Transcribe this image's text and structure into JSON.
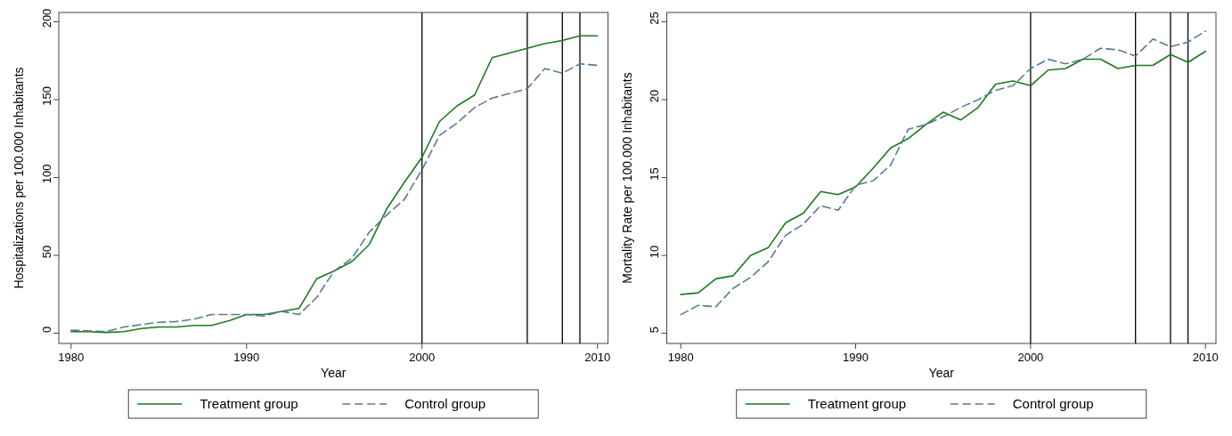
{
  "chart_data": [
    {
      "type": "line",
      "xlabel": "Year",
      "ylabel": "Hospitalizations per 100.000 Inhabitants",
      "x": [
        1980,
        1981,
        1982,
        1983,
        1984,
        1985,
        1986,
        1987,
        1988,
        1989,
        1990,
        1991,
        1992,
        1993,
        1994,
        1995,
        1996,
        1997,
        1998,
        1999,
        2000,
        2001,
        2002,
        2003,
        2004,
        2005,
        2006,
        2007,
        2008,
        2009,
        2010
      ],
      "series": [
        {
          "name": "Treatment group",
          "color": "#1a7a1a",
          "line_style": "solid",
          "values": [
            1,
            1,
            0.5,
            1,
            3,
            4,
            4,
            5,
            5,
            8,
            12,
            12,
            14,
            16,
            35,
            40,
            46,
            57,
            80,
            97,
            113,
            136,
            146,
            153,
            177,
            180,
            183,
            186,
            188,
            191,
            191
          ]
        },
        {
          "name": "Control group",
          "color": "#5a7a94",
          "line_style": "dashed",
          "values": [
            2,
            1.5,
            1,
            4,
            5.5,
            7,
            7.5,
            9,
            12,
            12,
            12,
            11,
            14,
            12,
            23,
            40,
            48,
            65,
            76,
            86,
            105,
            127,
            135,
            145,
            151,
            154,
            157,
            170,
            167,
            173,
            172
          ]
        }
      ],
      "xlim": [
        1979.3,
        2010.6
      ],
      "xticks": [
        1980,
        1990,
        2000,
        2010
      ],
      "ylim": [
        -6.6,
        206
      ],
      "yticks": [
        0,
        50,
        100,
        150,
        200
      ],
      "grid": false,
      "legend": "bottom",
      "ref_lines": [
        {
          "axis": "x",
          "value": 2000,
          "color": "#000000"
        },
        {
          "axis": "x",
          "value": 2006,
          "color": "#000000"
        },
        {
          "axis": "x",
          "value": 2008,
          "color": "#000000"
        },
        {
          "axis": "x",
          "value": 2009,
          "color": "#000000"
        }
      ]
    },
    {
      "type": "line",
      "xlabel": "Year",
      "ylabel": "Mortality Rate per 100.000 Inhabitants",
      "x": [
        1980,
        1981,
        1982,
        1983,
        1984,
        1985,
        1986,
        1987,
        1988,
        1989,
        1990,
        1991,
        1992,
        1993,
        1994,
        1995,
        1996,
        1997,
        1998,
        1999,
        2000,
        2001,
        2002,
        2003,
        2004,
        2005,
        2006,
        2007,
        2008,
        2009,
        2010
      ],
      "series": [
        {
          "name": "Treatment group",
          "color": "#1a7a1a",
          "line_style": "solid",
          "values": [
            7.5,
            7.6,
            8.5,
            8.7,
            10.0,
            10.5,
            12.1,
            12.7,
            14.1,
            13.9,
            14.4,
            15.6,
            16.9,
            17.5,
            18.4,
            19.2,
            18.7,
            19.5,
            21.0,
            21.2,
            20.9,
            21.9,
            22.0,
            22.6,
            22.6,
            22.0,
            22.2,
            22.2,
            22.9,
            22.4,
            23.1
          ]
        },
        {
          "name": "Control group",
          "color": "#5a7a94",
          "line_style": "dashed",
          "values": [
            6.2,
            6.8,
            6.7,
            7.9,
            8.6,
            9.6,
            11.3,
            12.0,
            13.2,
            12.9,
            14.5,
            14.8,
            15.8,
            18.1,
            18.4,
            18.9,
            19.5,
            20.0,
            20.6,
            20.9,
            22.0,
            22.6,
            22.3,
            22.6,
            23.3,
            23.2,
            22.8,
            23.9,
            23.4,
            23.7,
            24.4
          ]
        }
      ],
      "xlim": [
        1979.2,
        2010.6
      ],
      "xticks": [
        1980,
        1990,
        2000,
        2010
      ],
      "ylim": [
        4.35,
        25.6
      ],
      "yticks": [
        5,
        10,
        15,
        20,
        25
      ],
      "grid": false,
      "legend": "bottom",
      "ref_lines": [
        {
          "axis": "x",
          "value": 2000,
          "color": "#000000"
        },
        {
          "axis": "x",
          "value": 2006,
          "color": "#000000"
        },
        {
          "axis": "x",
          "value": 2008,
          "color": "#000000"
        },
        {
          "axis": "x",
          "value": 2009,
          "color": "#000000"
        }
      ]
    }
  ]
}
